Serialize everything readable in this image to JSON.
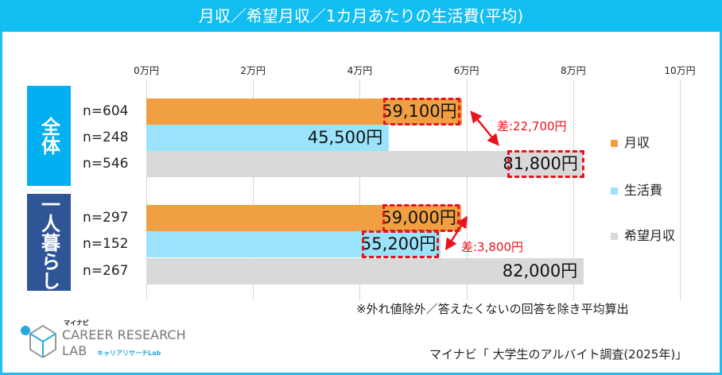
{
  "colors": {
    "header": "#12bdf2",
    "all_group": "#00b0f0",
    "alone_group": "#2f5597",
    "monthly": "#f0a042",
    "living": "#9be3fa",
    "desired": "#d9d9d9",
    "highlight": "#e8141c"
  },
  "chart_data": {
    "type": "bar",
    "orientation": "horizontal",
    "title": "月収／希望月収／1カ月あたりの生活費(平均)",
    "x_ticks": [
      "0万円",
      "2万円",
      "4万円",
      "6万円",
      "8万円",
      "10万円"
    ],
    "xlim": [
      0,
      100000
    ],
    "grid": true,
    "groups": [
      {
        "name": "全体",
        "rows": [
          {
            "series": "月収",
            "n": "n=604",
            "value": 59100,
            "label": "59,100円",
            "highlight": true
          },
          {
            "series": "生活費",
            "n": "n=248",
            "value": 45500,
            "label": "45,500円",
            "highlight": false
          },
          {
            "series": "希望月収",
            "n": "n=546",
            "value": 81800,
            "label": "81,800円",
            "highlight": true
          }
        ],
        "diff": "差:22,700円"
      },
      {
        "name": "一人暮らし",
        "rows": [
          {
            "series": "月収",
            "n": "n=297",
            "value": 59000,
            "label": "59,000円",
            "highlight": true
          },
          {
            "series": "生活費",
            "n": "n=152",
            "value": 55200,
            "label": "55,200円",
            "highlight": true
          },
          {
            "series": "希望月収",
            "n": "n=267",
            "value": 82000,
            "label": "82,000円",
            "highlight": false
          }
        ],
        "diff": "差:3,800円"
      }
    ],
    "legend": {
      "placement": "right",
      "entries": [
        "月収",
        "生活費",
        "希望月収"
      ]
    }
  },
  "note": "※外れ値除外／答えたくないの回答を除き平均算出",
  "source": "マイナビ「 大学生のアルバイト調査(2025年)」",
  "logo": {
    "brand": "マイナビ",
    "line1": "CAREER RESEARCH",
    "line2": "LAB",
    "sub": "キャリアリサーチLab"
  }
}
